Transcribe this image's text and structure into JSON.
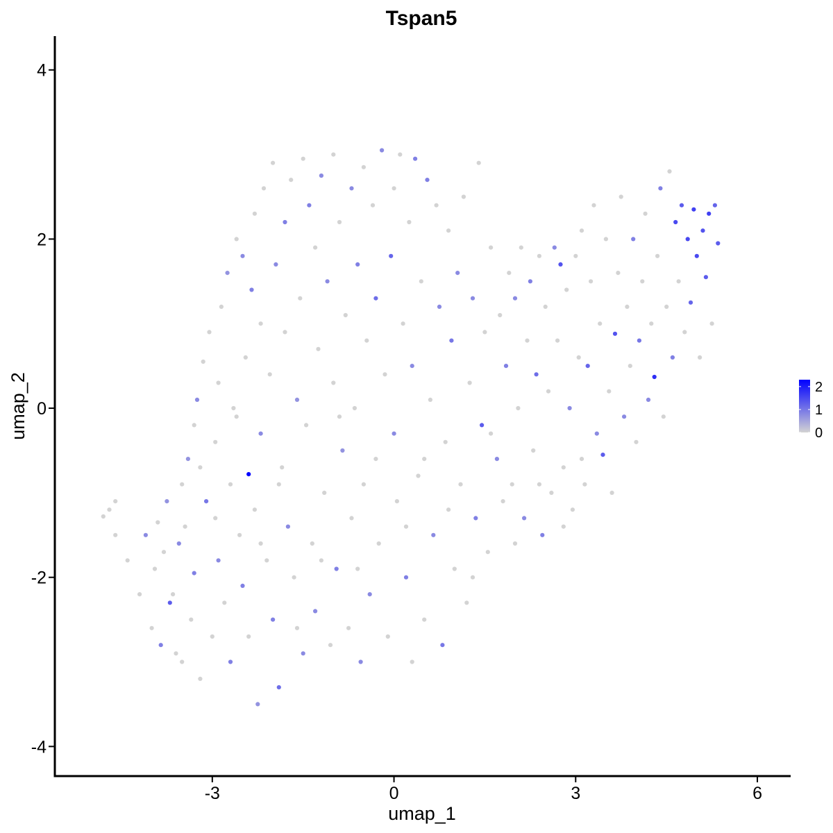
{
  "chart_data": {
    "type": "scatter",
    "title": "Tspan5",
    "xlabel": "umap_1",
    "ylabel": "umap_2",
    "xlim": [
      -5.6,
      6.55
    ],
    "ylim": [
      -4.35,
      4.4
    ],
    "x_ticks": [
      -3,
      0,
      3,
      6
    ],
    "x_tick_labels": [
      "-3",
      "0",
      "3",
      "6"
    ],
    "y_ticks": [
      -4,
      -2,
      0,
      2,
      4
    ],
    "y_tick_labels": [
      "-4",
      "-2",
      "0",
      "2",
      "4"
    ],
    "grid": false,
    "legend": {
      "position": "right",
      "type": "colorbar",
      "low_color": "#d3d3d3",
      "high_color": "#0000ff",
      "range": [
        0,
        2.3
      ],
      "ticks": [
        0,
        1,
        2
      ],
      "tick_labels": [
        "0",
        "1",
        "2"
      ]
    },
    "points": [
      [
        -4.8,
        -1.28,
        0
      ],
      [
        -4.7,
        -1.2,
        0
      ],
      [
        -4.6,
        -1.5,
        0
      ],
      [
        -4.6,
        -1.1,
        0
      ],
      [
        -4.4,
        -1.8,
        0
      ],
      [
        -4.2,
        -2.2,
        0
      ],
      [
        -4.1,
        -1.5,
        0.8
      ],
      [
        -4.0,
        -2.6,
        0
      ],
      [
        -3.95,
        -1.9,
        0
      ],
      [
        -3.9,
        -1.35,
        0
      ],
      [
        -3.85,
        -2.8,
        0.9
      ],
      [
        -3.8,
        -1.7,
        0
      ],
      [
        -3.75,
        -1.1,
        0.7
      ],
      [
        -3.7,
        -2.3,
        1.3
      ],
      [
        -3.65,
        -2.2,
        0
      ],
      [
        -3.6,
        -2.9,
        0
      ],
      [
        -3.55,
        -1.6,
        0.8
      ],
      [
        -3.5,
        -0.9,
        0
      ],
      [
        -3.5,
        -3.0,
        0
      ],
      [
        -3.45,
        -1.4,
        0
      ],
      [
        -3.4,
        -0.6,
        0.7
      ],
      [
        -3.35,
        -2.5,
        0
      ],
      [
        -3.3,
        -0.2,
        0
      ],
      [
        -3.3,
        -1.95,
        0.9
      ],
      [
        -3.25,
        0.1,
        0.8
      ],
      [
        -3.2,
        -3.2,
        0
      ],
      [
        -3.15,
        0.55,
        0
      ],
      [
        -3.1,
        -1.1,
        1.0
      ],
      [
        -3.05,
        0.9,
        0
      ],
      [
        -3.0,
        -2.7,
        0
      ],
      [
        -2.95,
        -0.4,
        0
      ],
      [
        -2.9,
        0.3,
        0
      ],
      [
        -2.9,
        -1.8,
        0.8
      ],
      [
        -2.85,
        1.2,
        0
      ],
      [
        -2.8,
        -2.3,
        0
      ],
      [
        -2.75,
        1.6,
        0.7
      ],
      [
        -2.7,
        -0.9,
        0
      ],
      [
        -2.7,
        -3.0,
        0.9
      ],
      [
        -2.65,
        0.0,
        0
      ],
      [
        -2.6,
        2.0,
        0
      ],
      [
        -2.55,
        -1.5,
        0
      ],
      [
        -2.5,
        1.8,
        0.8
      ],
      [
        -2.5,
        -2.1,
        0.9
      ],
      [
        -2.45,
        0.6,
        0
      ],
      [
        -2.4,
        -0.78,
        2.3
      ],
      [
        -2.4,
        -2.7,
        0
      ],
      [
        -2.35,
        1.4,
        0.9
      ],
      [
        -2.3,
        2.3,
        0
      ],
      [
        -2.3,
        -1.2,
        0
      ],
      [
        -2.25,
        -3.5,
        0.7
      ],
      [
        -2.2,
        1.0,
        0
      ],
      [
        -2.2,
        -0.3,
        0.8
      ],
      [
        -2.15,
        2.6,
        0
      ],
      [
        -2.1,
        -1.8,
        0
      ],
      [
        -2.05,
        0.4,
        0
      ],
      [
        -2.0,
        2.9,
        0
      ],
      [
        -2.0,
        -2.5,
        0.9
      ],
      [
        -1.95,
        1.7,
        0.8
      ],
      [
        -1.9,
        -3.3,
        1.1
      ],
      [
        -1.85,
        -0.7,
        0
      ],
      [
        -1.8,
        2.2,
        0.9
      ],
      [
        -1.8,
        0.9,
        0
      ],
      [
        -1.75,
        -1.4,
        0.8
      ],
      [
        -1.7,
        2.7,
        0
      ],
      [
        -1.65,
        -2.0,
        0
      ],
      [
        -1.6,
        0.1,
        0.7
      ],
      [
        -1.55,
        1.3,
        0
      ],
      [
        -1.5,
        -2.9,
        0.8
      ],
      [
        -1.5,
        2.95,
        0
      ],
      [
        -1.45,
        -0.2,
        0
      ],
      [
        -1.4,
        2.4,
        0.9
      ],
      [
        -1.35,
        -1.6,
        0
      ],
      [
        -1.3,
        1.9,
        0
      ],
      [
        -1.3,
        -2.4,
        0.8
      ],
      [
        -1.25,
        0.7,
        0
      ],
      [
        -1.2,
        2.75,
        0.8
      ],
      [
        -1.15,
        -1.0,
        0
      ],
      [
        -1.1,
        1.5,
        0.8
      ],
      [
        -1.05,
        -2.8,
        0
      ],
      [
        -1.0,
        0.3,
        0
      ],
      [
        -1.0,
        3.0,
        0
      ],
      [
        -0.95,
        -1.9,
        0.9
      ],
      [
        -0.9,
        2.2,
        0
      ],
      [
        -0.85,
        -0.5,
        0.7
      ],
      [
        -0.8,
        1.1,
        0
      ],
      [
        -0.75,
        -2.6,
        0
      ],
      [
        -0.7,
        2.6,
        0.8
      ],
      [
        -0.7,
        -1.3,
        0
      ],
      [
        -0.65,
        0.0,
        0
      ],
      [
        -0.6,
        1.7,
        0.9
      ],
      [
        -0.55,
        -3.0,
        0.8
      ],
      [
        -0.5,
        2.85,
        0
      ],
      [
        -0.5,
        -0.9,
        0
      ],
      [
        -0.45,
        0.8,
        0
      ],
      [
        -0.4,
        -2.2,
        0.8
      ],
      [
        -0.35,
        2.4,
        0
      ],
      [
        -0.3,
        1.3,
        1.1
      ],
      [
        -0.25,
        -1.6,
        0
      ],
      [
        -0.2,
        3.05,
        0.8
      ],
      [
        -0.15,
        0.4,
        0
      ],
      [
        -0.1,
        -2.7,
        0
      ],
      [
        -0.05,
        1.8,
        1.2
      ],
      [
        0.0,
        -0.3,
        0.8
      ],
      [
        0.0,
        2.6,
        0
      ],
      [
        0.05,
        -1.1,
        0
      ],
      [
        0.1,
        3.0,
        0
      ],
      [
        0.15,
        1.0,
        0
      ],
      [
        0.2,
        -2.0,
        0.9
      ],
      [
        0.25,
        2.2,
        0
      ],
      [
        0.3,
        -3.0,
        0
      ],
      [
        0.3,
        0.5,
        0.8
      ],
      [
        0.35,
        2.95,
        0.9
      ],
      [
        0.4,
        -0.8,
        0
      ],
      [
        0.45,
        1.5,
        0
      ],
      [
        0.5,
        -2.5,
        0
      ],
      [
        0.55,
        2.7,
        0.9
      ],
      [
        0.6,
        0.1,
        0
      ],
      [
        0.65,
        -1.5,
        0.8
      ],
      [
        0.7,
        2.4,
        0
      ],
      [
        0.75,
        1.2,
        0.8
      ],
      [
        0.8,
        -2.8,
        1.0
      ],
      [
        0.85,
        -0.4,
        0
      ],
      [
        0.9,
        2.1,
        0
      ],
      [
        0.95,
        0.8,
        1.0
      ],
      [
        1.0,
        -1.9,
        0
      ],
      [
        1.05,
        1.6,
        0.8
      ],
      [
        1.1,
        -0.9,
        0
      ],
      [
        1.15,
        2.5,
        0
      ],
      [
        1.2,
        -2.3,
        0
      ],
      [
        1.25,
        0.3,
        0
      ],
      [
        1.3,
        1.3,
        0.8
      ],
      [
        1.35,
        -1.3,
        0.9
      ],
      [
        1.4,
        2.9,
        0
      ],
      [
        1.45,
        -0.2,
        1.3
      ],
      [
        1.5,
        0.9,
        0
      ],
      [
        1.55,
        -1.7,
        0
      ],
      [
        1.6,
        1.9,
        0
      ],
      [
        1.7,
        -0.6,
        0.8
      ],
      [
        1.75,
        1.1,
        0
      ],
      [
        1.8,
        -1.1,
        0
      ],
      [
        1.85,
        0.5,
        0.9
      ],
      [
        1.9,
        1.6,
        0
      ],
      [
        1.95,
        -0.9,
        0
      ],
      [
        2.0,
        1.3,
        0.8
      ],
      [
        2.05,
        0.0,
        0
      ],
      [
        2.1,
        1.9,
        0
      ],
      [
        2.15,
        -1.3,
        0.8
      ],
      [
        2.2,
        0.8,
        0
      ],
      [
        2.25,
        1.5,
        0.9
      ],
      [
        2.3,
        -0.5,
        0
      ],
      [
        2.35,
        0.4,
        1.1
      ],
      [
        2.4,
        1.8,
        0
      ],
      [
        2.45,
        -1.5,
        0.9
      ],
      [
        2.5,
        1.2,
        0
      ],
      [
        2.55,
        0.2,
        0
      ],
      [
        2.6,
        -1.0,
        0
      ],
      [
        2.65,
        1.9,
        0.8
      ],
      [
        2.7,
        0.8,
        0
      ],
      [
        2.75,
        1.7,
        1.4
      ],
      [
        2.8,
        -0.7,
        0
      ],
      [
        2.85,
        1.4,
        0
      ],
      [
        2.9,
        0.0,
        0.8
      ],
      [
        2.95,
        -1.2,
        0
      ],
      [
        3.0,
        1.8,
        0
      ],
      [
        3.05,
        0.6,
        0
      ],
      [
        3.1,
        2.1,
        0
      ],
      [
        3.15,
        -0.9,
        0
      ],
      [
        3.2,
        0.5,
        1.2
      ],
      [
        3.25,
        1.5,
        0
      ],
      [
        3.3,
        2.4,
        0
      ],
      [
        3.35,
        -0.3,
        0.8
      ],
      [
        3.4,
        1.0,
        0
      ],
      [
        3.45,
        -0.55,
        1.3
      ],
      [
        3.5,
        2.0,
        0
      ],
      [
        3.55,
        0.2,
        0
      ],
      [
        3.6,
        -1.0,
        0
      ],
      [
        3.65,
        0.88,
        1.4
      ],
      [
        3.7,
        1.6,
        0
      ],
      [
        3.75,
        2.5,
        0
      ],
      [
        3.8,
        -0.1,
        0.8
      ],
      [
        3.85,
        1.2,
        0
      ],
      [
        3.9,
        0.5,
        0
      ],
      [
        3.95,
        2.0,
        0.9
      ],
      [
        4.0,
        -0.4,
        0
      ],
      [
        4.05,
        0.8,
        1.0
      ],
      [
        4.1,
        1.5,
        0
      ],
      [
        4.15,
        2.3,
        0
      ],
      [
        4.2,
        0.1,
        0.8
      ],
      [
        4.25,
        1.0,
        0
      ],
      [
        4.3,
        0.37,
        1.8
      ],
      [
        4.35,
        1.8,
        0
      ],
      [
        4.4,
        2.6,
        0.9
      ],
      [
        4.45,
        -0.1,
        0
      ],
      [
        4.5,
        1.2,
        0
      ],
      [
        4.55,
        2.8,
        0
      ],
      [
        4.6,
        0.6,
        0.9
      ],
      [
        4.65,
        2.2,
        1.5
      ],
      [
        4.7,
        1.5,
        0
      ],
      [
        4.75,
        2.4,
        1.3
      ],
      [
        4.8,
        0.9,
        0
      ],
      [
        4.85,
        2.0,
        1.5
      ],
      [
        4.9,
        1.25,
        1.2
      ],
      [
        4.95,
        2.35,
        1.6
      ],
      [
        5.0,
        1.8,
        1.5
      ],
      [
        5.05,
        0.6,
        0
      ],
      [
        5.1,
        2.1,
        1.4
      ],
      [
        5.15,
        1.55,
        1.3
      ],
      [
        5.2,
        2.3,
        1.6
      ],
      [
        5.25,
        1.0,
        0
      ],
      [
        5.3,
        2.4,
        1.2
      ],
      [
        5.35,
        1.95,
        1.3
      ],
      [
        -3.2,
        -0.7,
        0
      ],
      [
        -2.95,
        -1.3,
        0
      ],
      [
        -2.6,
        -0.1,
        0
      ],
      [
        -2.2,
        -1.6,
        0
      ],
      [
        -1.9,
        -0.9,
        0
      ],
      [
        -1.6,
        -2.6,
        0
      ],
      [
        -1.2,
        -1.8,
        0
      ],
      [
        -0.9,
        -0.1,
        0
      ],
      [
        -0.6,
        -1.9,
        0
      ],
      [
        -0.3,
        -0.6,
        0
      ],
      [
        0.2,
        -1.4,
        0
      ],
      [
        0.5,
        -0.6,
        0
      ],
      [
        0.9,
        -1.2,
        0
      ],
      [
        1.3,
        -2.0,
        0
      ],
      [
        1.6,
        -0.3,
        0
      ],
      [
        2.0,
        -1.6,
        0
      ],
      [
        2.4,
        -0.9,
        0
      ],
      [
        2.8,
        -1.4,
        0
      ],
      [
        3.1,
        -0.6,
        0
      ]
    ]
  }
}
